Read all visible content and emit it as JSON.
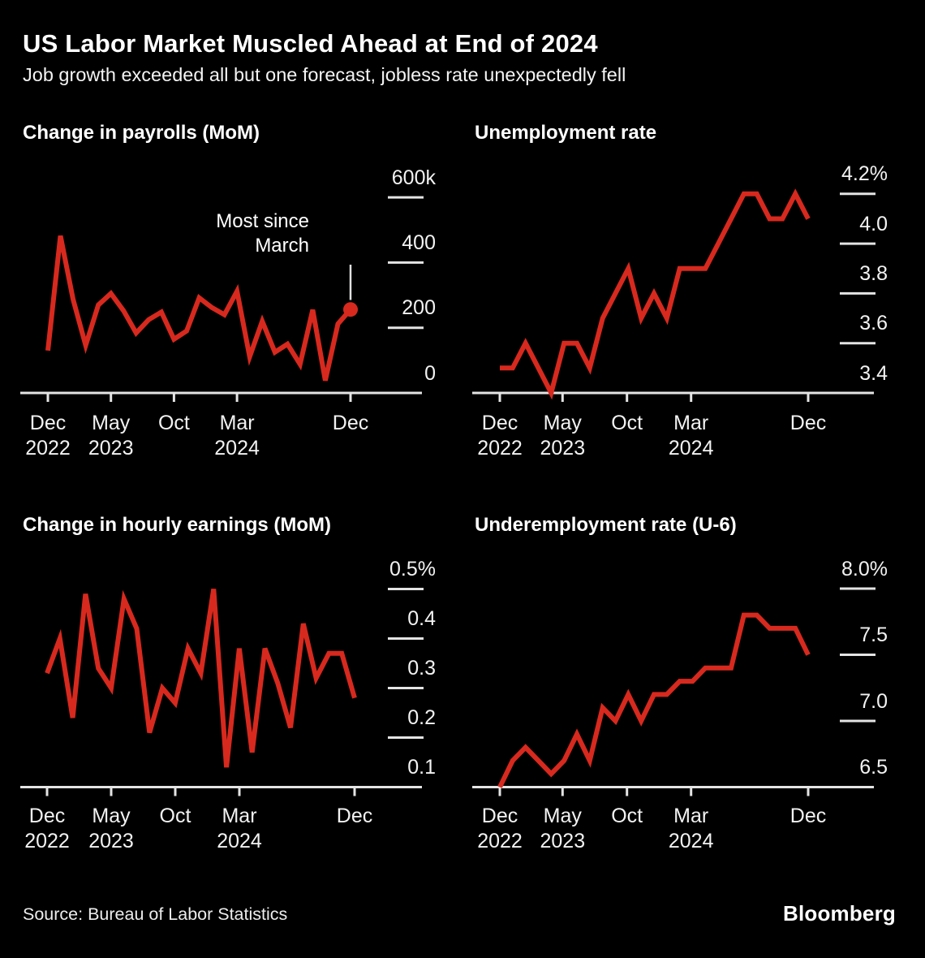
{
  "header": {
    "title": "US Labor Market Muscled Ahead at End of 2024",
    "subtitle": "Job growth exceeded all but one forecast, jobless rate unexpectedly fell"
  },
  "footer": {
    "source": "Source: Bureau of Labor Statistics",
    "brand": "Bloomberg"
  },
  "colors": {
    "background": "#000000",
    "line_red": "#d7291e",
    "axis_gray": "#e4e4e4",
    "text_white": "#f2f2f2"
  },
  "x_axis": {
    "start": "Dec 2022",
    "end": "Dec 2024",
    "frequency": "monthly",
    "ticks": [
      {
        "month": "Dec",
        "year": "2022"
      },
      {
        "month": "May",
        "year": "2023"
      },
      {
        "month": "Oct",
        "year": null
      },
      {
        "month": "Mar",
        "year": "2024"
      },
      {
        "month": "Dec",
        "year": null
      }
    ]
  },
  "chart_data": [
    {
      "id": "payrolls",
      "type": "line",
      "title": "Change in payrolls (MoM)",
      "unit": "thousands of jobs",
      "ylim": [
        0,
        600
      ],
      "values": [
        130,
        482,
        287,
        146,
        270,
        305,
        252,
        184,
        225,
        248,
        165,
        190,
        292,
        262,
        240,
        312,
        111,
        220,
        125,
        150,
        88,
        255,
        38,
        212,
        256
      ],
      "yticks": [
        {
          "v": 600,
          "label": "600k"
        },
        {
          "v": 400,
          "label": "400"
        },
        {
          "v": 200,
          "label": "200"
        },
        {
          "v": 0,
          "label": "0"
        }
      ],
      "end_dot": true,
      "annotation": {
        "line1": "Most since",
        "line2": "March"
      }
    },
    {
      "id": "unemployment",
      "type": "line",
      "title": "Unemployment rate",
      "unit": "percent",
      "ylim": [
        3.4,
        4.2
      ],
      "values": [
        3.5,
        3.5,
        3.6,
        3.5,
        3.4,
        3.6,
        3.6,
        3.5,
        3.7,
        3.8,
        3.9,
        3.7,
        3.8,
        3.7,
        3.9,
        3.9,
        3.9,
        4.0,
        4.1,
        4.2,
        4.2,
        4.1,
        4.1,
        4.2,
        4.1
      ],
      "yticks": [
        {
          "v": 4.2,
          "label": "4.2%"
        },
        {
          "v": 4.0,
          "label": "4.0"
        },
        {
          "v": 3.8,
          "label": "3.8"
        },
        {
          "v": 3.6,
          "label": "3.6"
        },
        {
          "v": 3.4,
          "label": "3.4"
        }
      ],
      "end_dot": false
    },
    {
      "id": "hourly_earnings",
      "type": "line",
      "title": "Change in hourly earnings (MoM)",
      "unit": "percent",
      "ylim": [
        0.1,
        0.5
      ],
      "values": [
        0.33,
        0.4,
        0.24,
        0.49,
        0.34,
        0.3,
        0.48,
        0.42,
        0.21,
        0.3,
        0.27,
        0.38,
        0.33,
        0.5,
        0.14,
        0.38,
        0.17,
        0.38,
        0.31,
        0.22,
        0.43,
        0.32,
        0.37,
        0.37,
        0.28
      ],
      "yticks": [
        {
          "v": 0.5,
          "label": "0.5%"
        },
        {
          "v": 0.4,
          "label": "0.4"
        },
        {
          "v": 0.3,
          "label": "0.3"
        },
        {
          "v": 0.2,
          "label": "0.2"
        },
        {
          "v": 0.1,
          "label": "0.1"
        }
      ],
      "end_dot": false
    },
    {
      "id": "u6",
      "type": "line",
      "title": "Underemployment rate (U-6)",
      "unit": "percent",
      "ylim": [
        6.5,
        8.0
      ],
      "values": [
        6.5,
        6.7,
        6.8,
        6.7,
        6.6,
        6.7,
        6.9,
        6.7,
        7.1,
        7.0,
        7.2,
        7.0,
        7.2,
        7.2,
        7.3,
        7.3,
        7.4,
        7.4,
        7.4,
        7.8,
        7.8,
        7.7,
        7.7,
        7.7,
        7.5
      ],
      "yticks": [
        {
          "v": 8.0,
          "label": "8.0%"
        },
        {
          "v": 7.5,
          "label": "7.5"
        },
        {
          "v": 7.0,
          "label": "7.0"
        },
        {
          "v": 6.5,
          "label": "6.5"
        }
      ],
      "end_dot": false
    }
  ]
}
